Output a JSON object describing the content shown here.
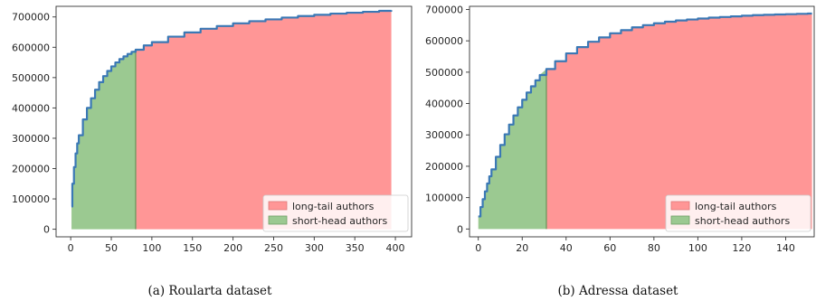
{
  "colors": {
    "long_tail_fill": "#ff9696",
    "short_head_fill": "#9bc991",
    "curve": "#3a78b5",
    "axes": "#333333"
  },
  "chart_data": [
    {
      "type": "area",
      "caption": "(a) Roularta dataset",
      "x_ticks": [
        0,
        50,
        100,
        150,
        200,
        250,
        300,
        350,
        400
      ],
      "y_ticks": [
        0,
        100000,
        200000,
        300000,
        400000,
        500000,
        600000,
        700000
      ],
      "xlim": [
        -18,
        420
      ],
      "ylim": [
        -25000,
        735000
      ],
      "cutoff_x": 80,
      "x": [
        1,
        2,
        4,
        6,
        8,
        10,
        15,
        20,
        25,
        30,
        35,
        40,
        45,
        50,
        55,
        60,
        65,
        70,
        75,
        80,
        90,
        100,
        120,
        140,
        160,
        180,
        200,
        220,
        240,
        260,
        280,
        300,
        320,
        340,
        360,
        380,
        395
      ],
      "y": [
        75000,
        150000,
        205000,
        250000,
        283000,
        310000,
        362000,
        400000,
        432000,
        460000,
        485000,
        505000,
        522000,
        537000,
        550000,
        561000,
        570000,
        578000,
        585000,
        592000,
        606000,
        617000,
        635000,
        649000,
        661000,
        670000,
        679000,
        686000,
        692000,
        698000,
        703000,
        707000,
        711000,
        714000,
        717000,
        720000,
        722000
      ],
      "legend": [
        "long-tail authors",
        "short-head authors"
      ],
      "legend_position": "lower right"
    },
    {
      "type": "area",
      "caption": "(b) Adressa dataset",
      "x_ticks": [
        0,
        20,
        40,
        60,
        80,
        100,
        120,
        140
      ],
      "y_ticks": [
        0,
        100000,
        200000,
        300000,
        400000,
        500000,
        600000,
        700000
      ],
      "xlim": [
        -4,
        153
      ],
      "ylim": [
        -25000,
        710000
      ],
      "cutoff_x": 31,
      "x": [
        0,
        1,
        2,
        3,
        4,
        5,
        6,
        8,
        10,
        12,
        14,
        16,
        18,
        20,
        22,
        24,
        26,
        28,
        31,
        35,
        40,
        45,
        50,
        55,
        60,
        65,
        70,
        75,
        80,
        85,
        90,
        95,
        100,
        105,
        110,
        115,
        120,
        125,
        130,
        135,
        140,
        145,
        150,
        152
      ],
      "y": [
        40000,
        70000,
        95000,
        120000,
        145000,
        168000,
        190000,
        230000,
        268000,
        302000,
        333000,
        362000,
        388000,
        412000,
        435000,
        455000,
        474000,
        491000,
        510000,
        535000,
        560000,
        580000,
        597000,
        611000,
        624000,
        634000,
        643000,
        650000,
        656000,
        661000,
        665000,
        668000,
        671000,
        674000,
        676000,
        678000,
        680000,
        682000,
        683000,
        684000,
        685000,
        686000,
        687000,
        687000
      ],
      "legend": [
        "long-tail authors",
        "short-head authors"
      ],
      "legend_position": "lower right"
    }
  ]
}
